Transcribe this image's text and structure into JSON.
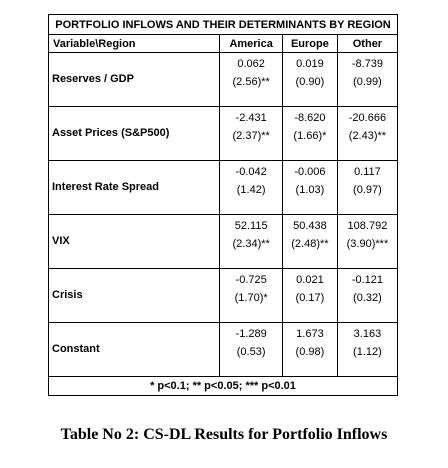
{
  "table": {
    "title": "PORTFOLIO INFLOWS AND THEIR DETERMINANTS BY REGION",
    "header": [
      "Variable\\Region",
      "America",
      "Europe",
      "Other"
    ],
    "rows": [
      {
        "label": "Reserves / GDP",
        "cells": [
          [
            "0.062",
            "(2.56)**"
          ],
          [
            "0.019",
            "(0.90)"
          ],
          [
            "-8.739",
            "(0.99)"
          ]
        ]
      },
      {
        "label": "Asset Prices (S&P500)",
        "cells": [
          [
            "-2.431",
            "(2.37)**"
          ],
          [
            "-8.620",
            "(1.66)*"
          ],
          [
            "-20.666",
            "(2.43)**"
          ]
        ]
      },
      {
        "label": "Interest Rate Spread",
        "cells": [
          [
            "-0.042",
            "(1.42)"
          ],
          [
            "-0.006",
            "(1.03)"
          ],
          [
            "0.117",
            "(0.97)"
          ]
        ]
      },
      {
        "label": "VIX",
        "cells": [
          [
            "52.115",
            "(2.34)**"
          ],
          [
            "50.438",
            "(2.48)**"
          ],
          [
            "108.792",
            "(3.90)***"
          ]
        ]
      },
      {
        "label": "Crisis",
        "cells": [
          [
            "-0.725",
            "(1.70)*"
          ],
          [
            "0.021",
            "(0.17)"
          ],
          [
            "-0.121",
            "(0.32)"
          ]
        ]
      },
      {
        "label": "Constant",
        "cells": [
          [
            "-1.289",
            "(0.53)"
          ],
          [
            "1.673",
            "(0.98)"
          ],
          [
            "3.163",
            "(1.12)"
          ]
        ]
      }
    ],
    "footnote": "* p<0.1; ** p<0.05; *** p<0.01"
  },
  "caption": "Table No 2: CS-DL Results for Portfolio Inflows"
}
